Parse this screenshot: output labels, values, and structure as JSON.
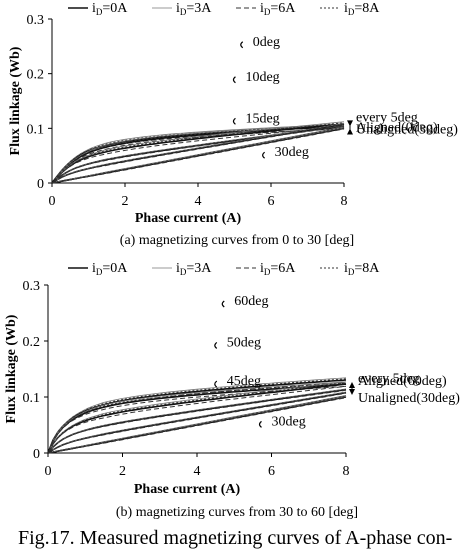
{
  "chart_data": [
    {
      "type": "line",
      "title": "",
      "xlabel": "Phase current (A)",
      "ylabel": "Flux linkage (Wb)",
      "xlim": [
        0,
        8
      ],
      "ylim": [
        0,
        0.3
      ],
      "xticks": [
        "0",
        "2",
        "4",
        "6",
        "8"
      ],
      "yticks": [
        "0",
        "0.1",
        "0.2",
        "0.3"
      ],
      "legend": {
        "placement": "top",
        "entries": [
          {
            "label": "i",
            "sub": "D",
            "suffix": "=0A",
            "style": "solid"
          },
          {
            "label": "i",
            "sub": "D",
            "suffix": "=3A",
            "style": "thin"
          },
          {
            "label": "i",
            "sub": "D",
            "suffix": "=6A",
            "style": "dashed"
          },
          {
            "label": "i",
            "sub": "D",
            "suffix": "=8A",
            "style": "dotted"
          }
        ]
      },
      "annotations": {
        "aligned": "Aligned(0deg)",
        "unaligned": "Unaligned(30deg)",
        "step": "every 5deg",
        "labels": [
          {
            "text": "0deg",
            "x": 5.5,
            "y": 0.262
          },
          {
            "text": "10deg",
            "x": 5.3,
            "y": 0.198
          },
          {
            "text": "15deg",
            "x": 5.3,
            "y": 0.122
          },
          {
            "text": "30deg",
            "x": 6.1,
            "y": 0.06
          }
        ]
      },
      "grid": false,
      "series": [
        {
          "angle": 0,
          "k": 0.0565,
          "s": 1.55,
          "m": 0.0024
        },
        {
          "angle": 5,
          "k": 0.054,
          "s": 1.45,
          "m": 0.003
        },
        {
          "angle": 10,
          "k": 0.04,
          "s": 1.75,
          "m": 0.006
        },
        {
          "angle": 15,
          "k": 0.024,
          "s": 2.0,
          "m": 0.0085
        },
        {
          "angle": 20,
          "k": 0.013,
          "s": 2.5,
          "m": 0.011
        },
        {
          "angle": 25,
          "k": 0.0,
          "s": 2.0,
          "m": 0.0127
        },
        {
          "angle": 30,
          "k": 0.0,
          "s": 2.0,
          "m": 0.0125
        }
      ]
    },
    {
      "type": "line",
      "title": "",
      "xlabel": "Phase current (A)",
      "ylabel": "Flux linkage (Wb)",
      "xlim": [
        0,
        8
      ],
      "ylim": [
        0,
        0.3
      ],
      "xticks": [
        "0",
        "2",
        "4",
        "6",
        "8"
      ],
      "yticks": [
        "0",
        "0.1",
        "0.2",
        "0.3"
      ],
      "legend": {
        "placement": "top",
        "entries": [
          {
            "label": "i",
            "sub": "D",
            "suffix": "=0A",
            "style": "solid"
          },
          {
            "label": "i",
            "sub": "D",
            "suffix": "=3A",
            "style": "thin"
          },
          {
            "label": "i",
            "sub": "D",
            "suffix": "=6A",
            "style": "dashed"
          },
          {
            "label": "i",
            "sub": "D",
            "suffix": "=8A",
            "style": "dotted"
          }
        ]
      },
      "annotations": {
        "aligned": "Aligned(60deg)",
        "unaligned": "Unaligned(30deg)",
        "step": "every 5deg",
        "labels": [
          {
            "text": "60deg",
            "x": 5.0,
            "y": 0.275
          },
          {
            "text": "50deg",
            "x": 4.8,
            "y": 0.201
          },
          {
            "text": "45deg",
            "x": 4.8,
            "y": 0.132
          },
          {
            "text": "30deg",
            "x": 6.0,
            "y": 0.06
          }
        ]
      },
      "grid": false,
      "series": [
        {
          "angle": 60,
          "k": 0.054,
          "s": 1.5,
          "m": 0.004,
          "c0": 0.018
        },
        {
          "angle": 55,
          "k": 0.052,
          "s": 1.6,
          "m": 0.0038,
          "c0": 0.015
        },
        {
          "angle": 50,
          "k": 0.038,
          "s": 1.8,
          "m": 0.007,
          "c0": 0.01
        },
        {
          "angle": 45,
          "k": 0.024,
          "s": 2.0,
          "m": 0.009,
          "c0": 0.005
        },
        {
          "angle": 40,
          "k": 0.013,
          "s": 2.5,
          "m": 0.011,
          "c0": 0.0
        },
        {
          "angle": 35,
          "k": 0.0,
          "s": 2.0,
          "m": 0.0127,
          "c0": 0.0
        },
        {
          "angle": 30,
          "k": 0.0,
          "s": 2.0,
          "m": 0.0125,
          "c0": 0.0
        }
      ]
    }
  ],
  "captions": {
    "a": "(a) magnetizing curves from 0 to 30 [deg]",
    "b": "(b) magnetizing curves from 30 to 60 [deg]",
    "figure": "Fig.17.    Measured magnetizing curves of A-phase con-"
  }
}
